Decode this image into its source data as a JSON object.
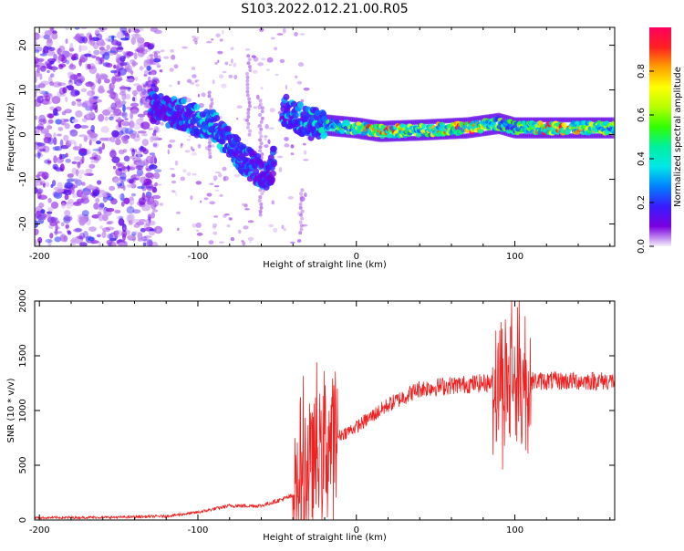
{
  "page": {
    "title": "S103.2022.012.21.00.R05"
  },
  "chart_data": [
    {
      "type": "heatmap",
      "xlabel": "Height of straight line (km)",
      "ylabel": "Frequency (Hz)",
      "xlim": [
        -203,
        163
      ],
      "ylim": [
        -25,
        24
      ],
      "x_ticks": [
        -200,
        -100,
        0,
        100
      ],
      "y_ticks": [
        -20,
        -10,
        0,
        10,
        20
      ],
      "colorbar": {
        "label": "Normalized spectral amplitude",
        "range": [
          0,
          1
        ],
        "ticks": [
          "0.0",
          "0.2",
          "0.4",
          "0.6",
          "0.8"
        ],
        "tick_values": [
          0,
          0.2,
          0.4,
          0.6,
          0.8
        ],
        "colormap": [
          "#f4f0fa",
          "#7a00e0",
          "#3a1aff",
          "#0080ff",
          "#00e8e8",
          "#00f0a0",
          "#30ff00",
          "#b8ff00",
          "#ffff00",
          "#ffa000",
          "#ff2020",
          "#ff0060"
        ]
      },
      "noise_region_x": [
        -203,
        -125
      ],
      "ridge": [
        {
          "x": -130,
          "f": 6.5,
          "a": 0.25
        },
        {
          "x": -120,
          "f": 5,
          "a": 0.25
        },
        {
          "x": -110,
          "f": 4.5,
          "a": 0.3
        },
        {
          "x": -100,
          "f": 3,
          "a": 0.35
        },
        {
          "x": -92,
          "f": 2.5,
          "a": 0.4
        },
        {
          "x": -85,
          "f": 0,
          "a": 0.3
        },
        {
          "x": -78,
          "f": -3,
          "a": 0.35
        },
        {
          "x": -70,
          "f": -6,
          "a": 0.3
        },
        {
          "x": -62,
          "f": -8,
          "a": 0.25
        },
        {
          "x": -55,
          "f": -10,
          "a": 0.25
        },
        {
          "x": -45,
          "f": 5.5,
          "a": 0.3
        },
        {
          "x": -38,
          "f": 4,
          "a": 0.3
        },
        {
          "x": -30,
          "f": 2.5,
          "a": 0.35
        },
        {
          "x": -15,
          "f": 2,
          "a": 0.45
        },
        {
          "x": 0,
          "f": 1.5,
          "a": 0.6
        },
        {
          "x": 15,
          "f": 0.7,
          "a": 0.85
        },
        {
          "x": 40,
          "f": 1,
          "a": 0.6
        },
        {
          "x": 70,
          "f": 1.5,
          "a": 0.85
        },
        {
          "x": 90,
          "f": 2.5,
          "a": 0.5
        },
        {
          "x": 100,
          "f": 1.5,
          "a": 0.45
        },
        {
          "x": 120,
          "f": 1.5,
          "a": 0.85
        },
        {
          "x": 163,
          "f": 1.5,
          "a": 0.55
        }
      ]
    },
    {
      "type": "line",
      "xlabel": "Height of straight line (km)",
      "ylabel": "SNR (10 * v/v)",
      "xlim": [
        -203,
        163
      ],
      "ylim": [
        0,
        2000
      ],
      "x_ticks": [
        -200,
        -100,
        0,
        100
      ],
      "y_ticks": [
        0,
        500,
        1000,
        1500,
        2000
      ],
      "series": [
        {
          "color": "#ee2222",
          "baseline": [
            {
              "x": -203,
              "y": 20
            },
            {
              "x": -150,
              "y": 25
            },
            {
              "x": -120,
              "y": 35
            },
            {
              "x": -100,
              "y": 70
            },
            {
              "x": -80,
              "y": 130
            },
            {
              "x": -60,
              "y": 130
            },
            {
              "x": -40,
              "y": 220
            },
            {
              "x": -30,
              "y": 500
            },
            {
              "x": -20,
              "y": 700
            },
            {
              "x": 0,
              "y": 850
            },
            {
              "x": 20,
              "y": 1050
            },
            {
              "x": 40,
              "y": 1200
            },
            {
              "x": 60,
              "y": 1230
            },
            {
              "x": 80,
              "y": 1250
            },
            {
              "x": 100,
              "y": 1270
            },
            {
              "x": 163,
              "y": 1270
            }
          ],
          "bursts": [
            {
              "x_from": -40,
              "x_to": -12,
              "amp": 900
            },
            {
              "x_from": 86,
              "x_to": 110,
              "amp": 800
            }
          ],
          "peak": {
            "x": 98,
            "y": 2000
          }
        }
      ]
    }
  ]
}
